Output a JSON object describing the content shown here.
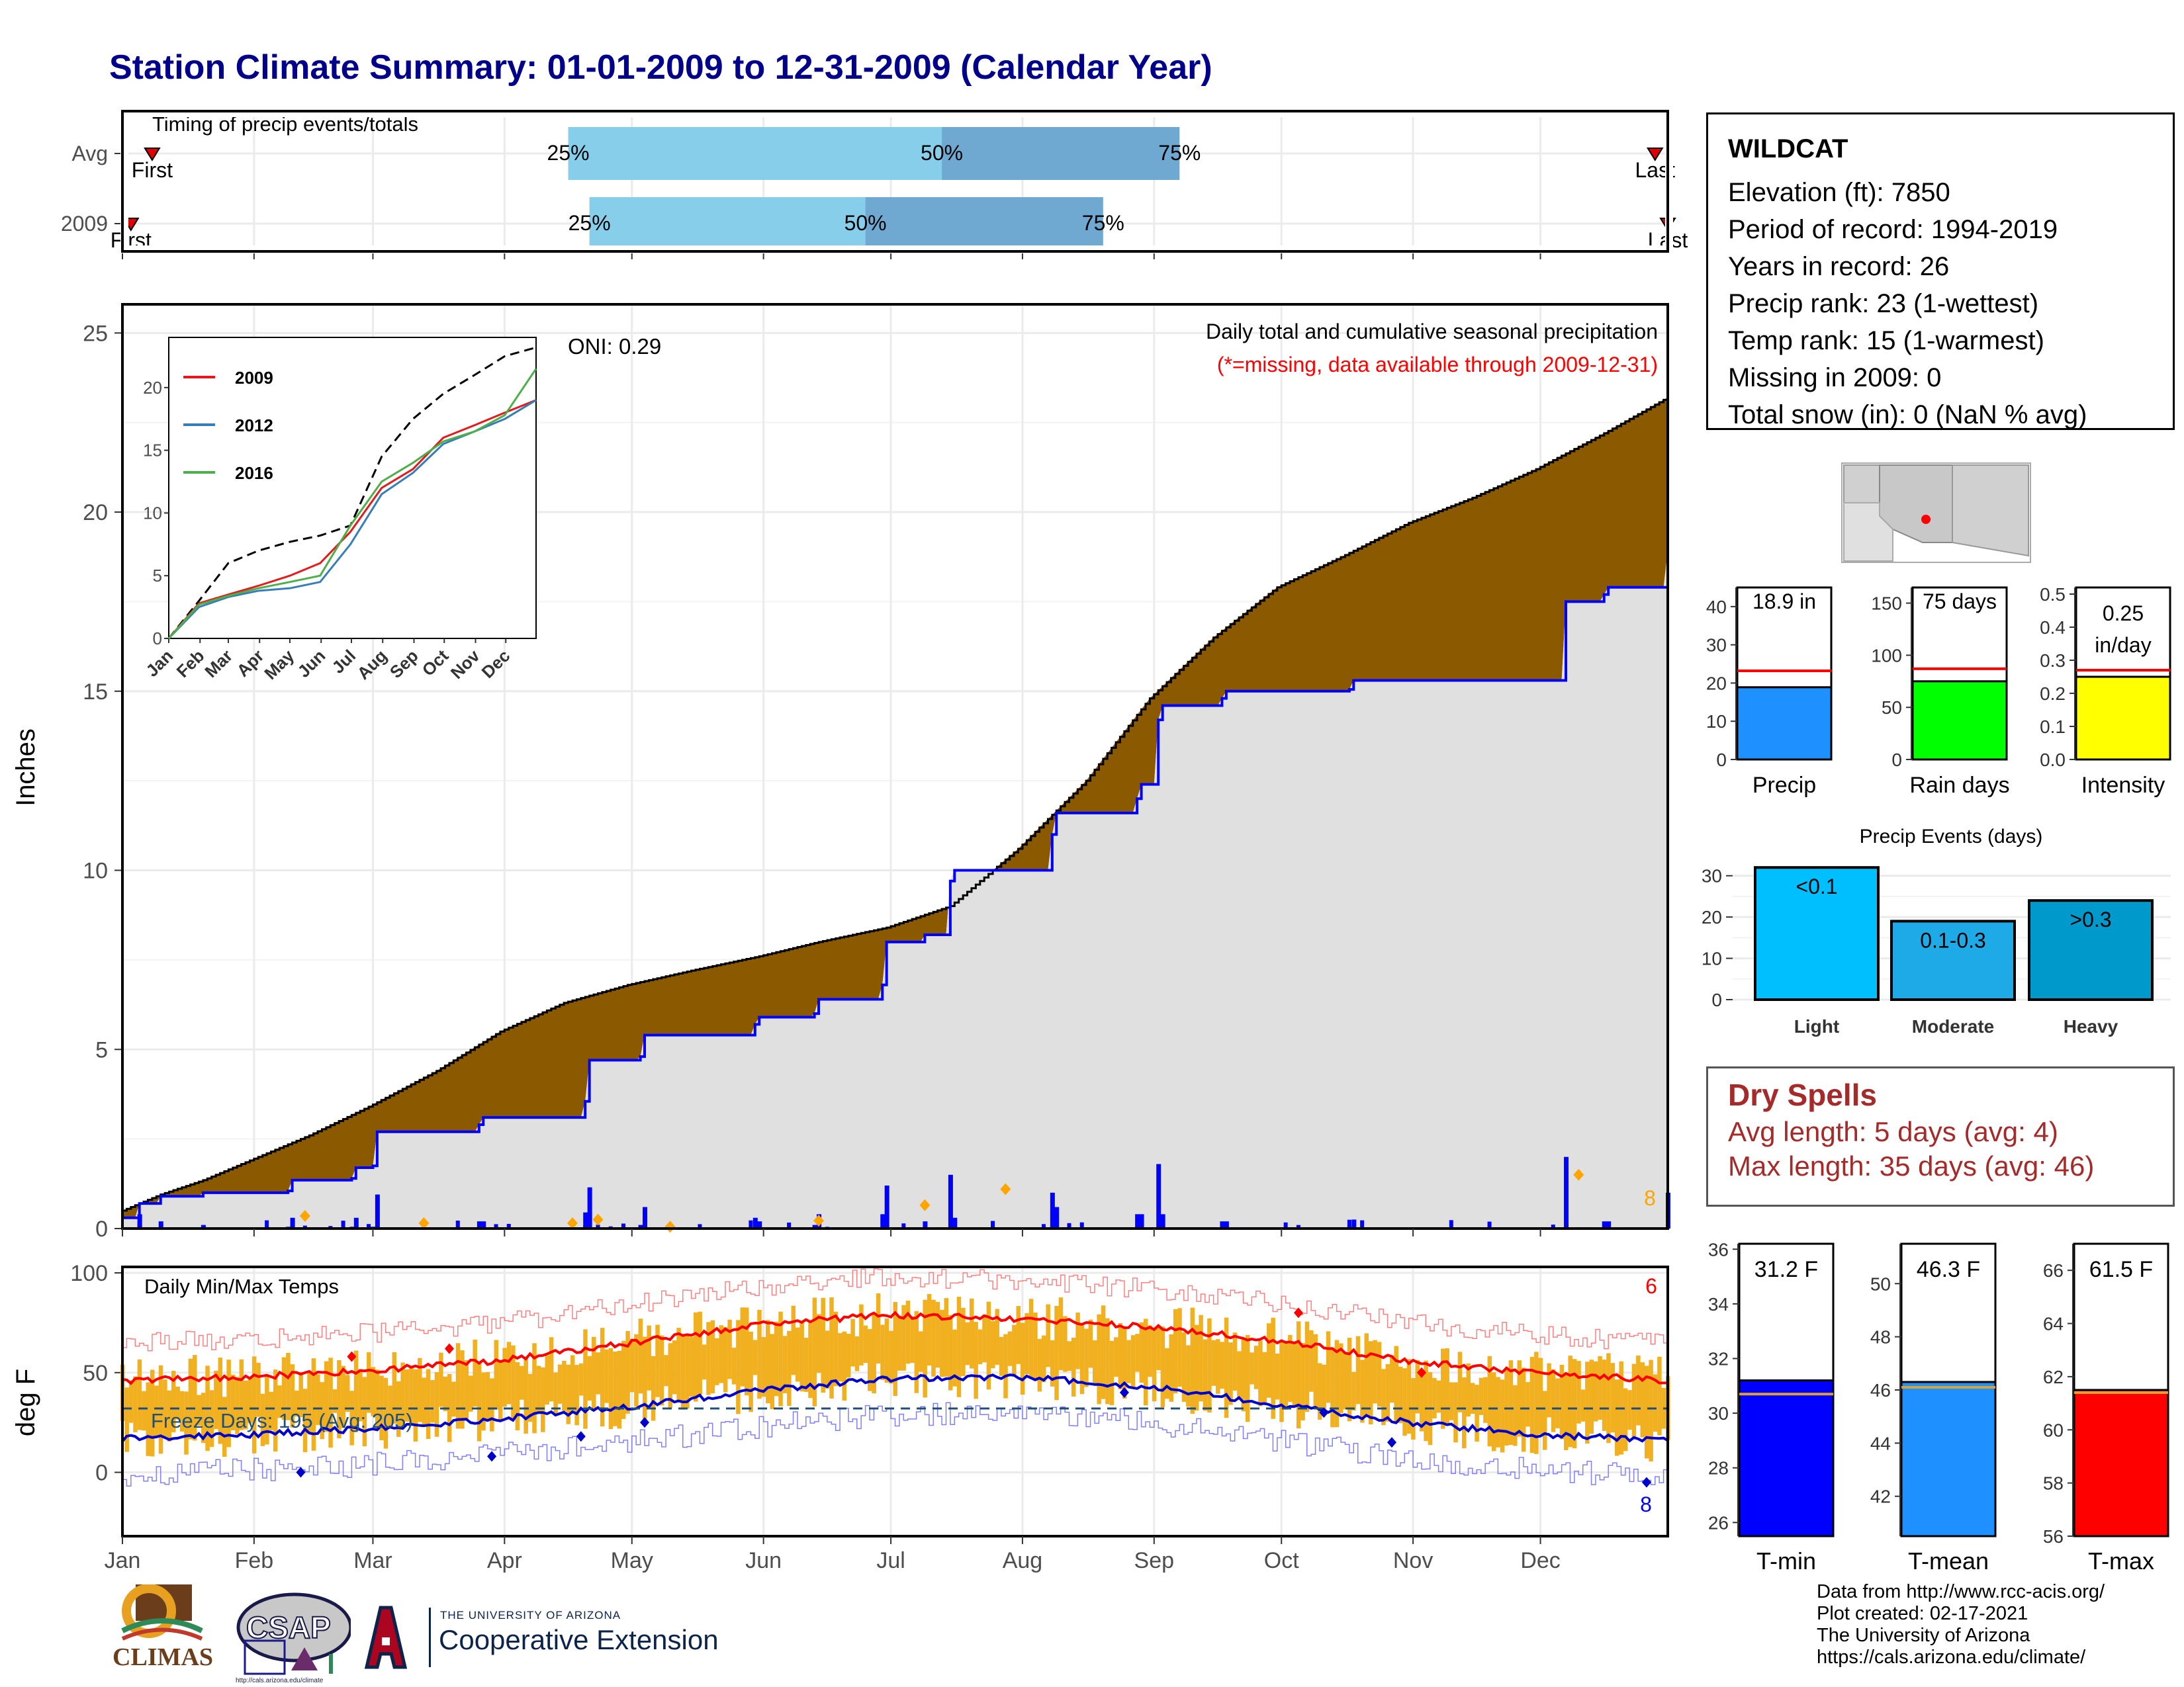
{
  "title": "Station Climate Summary: 01-01-2009 to 12-31-2009 (Calendar Year)",
  "colors": {
    "title": "#00008b",
    "brown": "#8b5a00",
    "lightgray": "#e0e0e0",
    "blue": "#0000ff",
    "red": "#ff0000",
    "orange": "#f0b020",
    "lightblue": "#87ceeb",
    "midblue": "#6fa8d0"
  },
  "timing": {
    "label": "Timing of precip events/totals",
    "rows": [
      {
        "name": "Avg",
        "first_label": "First",
        "last_label": "Last",
        "first_day": 8,
        "last_day": 362,
        "p25": 106,
        "p50": 194,
        "p75": 250,
        "p25_label": "25%",
        "p50_label": "50%",
        "p75_label": "75%"
      },
      {
        "name": "2009",
        "first_label": "First",
        "last_label": "Last",
        "first_day": 3,
        "last_day": 365,
        "p25": 111,
        "p50": 176,
        "p75": 232,
        "p25_label": "25%",
        "p50_label": "50%",
        "p75_label": "75%"
      }
    ]
  },
  "months": [
    "Jan",
    "Feb",
    "Mar",
    "Apr",
    "May",
    "Jun",
    "Jul",
    "Aug",
    "Sep",
    "Oct",
    "Nov",
    "Dec"
  ],
  "precip_panel": {
    "ylabel": "Inches",
    "yticks": [
      0,
      5,
      10,
      15,
      20,
      25
    ],
    "ylim": [
      0,
      25.8
    ],
    "annot_title": "Daily total and cumulative seasonal precipitation",
    "annot_missing": "(*=missing, data available through 2009-12-31)",
    "oni_label": "ONI: 0.29",
    "corner_count": "8"
  },
  "chart_data": [
    {
      "type": "area",
      "title": "Daily total and cumulative seasonal precipitation",
      "ylabel": "Inches",
      "ylim": [
        0,
        25.8
      ],
      "series": [
        {
          "name": "avg cumulative",
          "x": [
            1,
            10,
            20,
            31,
            45,
            59,
            75,
            90,
            105,
            120,
            135,
            151,
            165,
            181,
            196,
            212,
            228,
            243,
            258,
            273,
            289,
            304,
            319,
            334,
            350,
            365
          ],
          "values": [
            0.5,
            0.95,
            1.35,
            1.9,
            2.6,
            3.4,
            4.4,
            5.5,
            6.3,
            6.8,
            7.2,
            7.6,
            8.0,
            8.4,
            9.0,
            10.6,
            12.5,
            14.8,
            16.5,
            17.9,
            18.8,
            19.7,
            20.4,
            21.2,
            22.2,
            23.2
          ]
        },
        {
          "name": "2009 cumulative",
          "x": [
            1,
            5,
            10,
            20,
            40,
            41,
            55,
            56,
            60,
            61,
            85,
            86,
            110,
            111,
            123,
            124,
            150,
            151,
            164,
            165,
            180,
            181,
            190,
            196,
            197,
            220,
            221,
            240,
            241,
            245,
            246,
            260,
            261,
            290,
            291,
            340,
            341,
            350,
            351,
            365
          ],
          "values": [
            0.3,
            0.7,
            0.9,
            1.0,
            1.05,
            1.35,
            1.4,
            1.7,
            1.75,
            2.7,
            2.9,
            3.1,
            3.55,
            4.7,
            4.8,
            5.4,
            5.7,
            5.9,
            6.0,
            6.4,
            6.8,
            8.0,
            8.2,
            9.7,
            10.0,
            11.0,
            11.6,
            12.0,
            12.4,
            14.2,
            14.6,
            14.8,
            15.0,
            15.05,
            15.3,
            15.3,
            17.5,
            17.7,
            17.9,
            18.9
          ]
        }
      ]
    },
    {
      "type": "line",
      "title": "",
      "categories": [
        "Jan",
        "Feb",
        "Mar",
        "Apr",
        "May",
        "Jun",
        "Jul",
        "Aug",
        "Sep",
        "Oct",
        "Nov",
        "Dec"
      ],
      "ylim": [
        0,
        22
      ],
      "yticks": [
        0,
        5,
        10,
        15,
        20
      ],
      "series": [
        {
          "name": "avg",
          "dashed": true,
          "x": [
            1,
            31,
            60,
            90,
            121,
            151,
            181,
            212,
            243,
            273,
            304,
            334,
            365
          ],
          "values": [
            0,
            3,
            6,
            7,
            7.7,
            8.2,
            9,
            14.5,
            17.5,
            19.5,
            21,
            22.5,
            23.2
          ]
        },
        {
          "name": "2009",
          "values": [
            0,
            2.8,
            3.5,
            4.2,
            5.0,
            6.0,
            8.5,
            12.0,
            13.5,
            16.0,
            17.0,
            18.0,
            19.0
          ],
          "x": [
            1,
            31,
            60,
            90,
            121,
            151,
            181,
            212,
            243,
            273,
            304,
            334,
            365
          ]
        },
        {
          "name": "2012",
          "values": [
            0,
            2.5,
            3.3,
            3.8,
            4.0,
            4.5,
            7.5,
            11.5,
            13.2,
            15.5,
            16.5,
            17.5,
            19.0
          ],
          "x": [
            1,
            31,
            60,
            90,
            121,
            151,
            181,
            212,
            243,
            273,
            304,
            334,
            365
          ]
        },
        {
          "name": "2016",
          "values": [
            0,
            2.7,
            3.4,
            4.0,
            4.5,
            5.0,
            9.0,
            12.5,
            14.0,
            15.7,
            16.5,
            17.8,
            21.5
          ],
          "x": [
            1,
            31,
            60,
            90,
            121,
            151,
            181,
            212,
            243,
            273,
            304,
            334,
            365
          ]
        }
      ]
    },
    {
      "type": "bar",
      "title": "",
      "categories": [
        "Precip",
        "Rain days",
        "Intensity"
      ],
      "series": [
        {
          "name": "2009",
          "values": [
            18.9,
            75,
            0.25
          ]
        },
        {
          "name": "avg",
          "values": [
            23.2,
            87,
            0.27
          ]
        }
      ],
      "labels": [
        "18.9 in",
        "75 days",
        "0.25 in/day"
      ],
      "ylims": [
        [
          0,
          45
        ],
        [
          0,
          165
        ],
        [
          0,
          0.52
        ]
      ]
    },
    {
      "type": "bar",
      "title": "Precip Events (days)",
      "categories": [
        "Light",
        "Moderate",
        "Heavy"
      ],
      "series": [
        {
          "name": "2009",
          "values": [
            32,
            19,
            24
          ]
        }
      ],
      "labels": [
        "<0.1",
        "0.1-0.3",
        ">0.3"
      ],
      "ylim": [
        0,
        33
      ]
    },
    {
      "type": "line",
      "title": "Daily Min/Max Temps",
      "ylabel": "deg F",
      "ylim": [
        -32,
        103
      ],
      "yticks": [
        0,
        50,
        100
      ],
      "series": [
        {
          "name": "avg max",
          "x": [
            1,
            31,
            60,
            90,
            121,
            151,
            181,
            212,
            243,
            273,
            304,
            334,
            365
          ],
          "values": [
            46,
            48,
            51,
            56,
            65,
            74,
            79,
            77,
            73,
            66,
            56,
            50,
            46
          ]
        },
        {
          "name": "avg min",
          "x": [
            1,
            31,
            60,
            90,
            121,
            151,
            181,
            212,
            243,
            273,
            304,
            334,
            365
          ],
          "values": [
            17,
            19,
            22,
            27,
            33,
            41,
            47,
            48,
            43,
            34,
            25,
            19,
            16
          ]
        }
      ],
      "freeze_line": 32
    },
    {
      "type": "bar",
      "title": "",
      "categories": [
        "T-min",
        "T-mean",
        "T-max"
      ],
      "series": [
        {
          "name": "2009",
          "values": [
            31.2,
            46.3,
            61.5
          ]
        },
        {
          "name": "avg",
          "values": [
            30.7,
            46.1,
            61.4
          ]
        }
      ],
      "labels": [
        "31.2 F",
        "46.3 F",
        "61.5 F"
      ],
      "ylims": [
        [
          25.5,
          36.2
        ],
        [
          40.5,
          51.5
        ],
        [
          56,
          67
        ]
      ]
    }
  ],
  "inset": {
    "yticks": [
      0,
      5,
      10,
      15,
      20
    ],
    "legend": [
      {
        "name": "2009",
        "color": "#e41a1c"
      },
      {
        "name": "2012",
        "color": "#377eb8"
      },
      {
        "name": "2016",
        "color": "#4daf4a"
      }
    ]
  },
  "temp_panel": {
    "label": "Daily Min/Max Temps",
    "ylabel": "deg F",
    "yticks": [
      0,
      50,
      100
    ],
    "freeze_label": "Freeze Days: 195 (Avg: 205)",
    "max_record_count": "6",
    "min_record_count": "8"
  },
  "station": {
    "name": "WILDCAT",
    "lines": [
      "Elevation (ft): 7850",
      "Period of record: 1994-2019",
      "Years in record: 26",
      "Precip rank: 23 (1-wettest)",
      "Temp rank: 15 (1-warmest)",
      "Missing in 2009: 0",
      "Total snow (in): 0 (NaN % avg)"
    ]
  },
  "summary_bars": {
    "precip": {
      "label": "Precip",
      "value_label": "18.9 in",
      "yticks": [
        0,
        10,
        20,
        30,
        40
      ],
      "color": "#1e90ff"
    },
    "raindays": {
      "label": "Rain days",
      "value_label": "75 days",
      "yticks": [
        0,
        50,
        100,
        150
      ],
      "color": "#00ff00"
    },
    "intensity": {
      "label": "Intensity",
      "value_label": "0.25",
      "value_label2": "in/day",
      "yticks": [
        "0.0",
        "0.1",
        "0.2",
        "0.3",
        "0.4",
        "0.5"
      ],
      "color": "#ffff00"
    }
  },
  "events": {
    "title": "Precip Events (days)",
    "yticks": [
      0,
      10,
      20,
      30
    ],
    "bars": [
      {
        "label": "Light",
        "inner": "<0.1",
        "color": "#00bfff"
      },
      {
        "label": "Moderate",
        "inner": "0.1-0.3",
        "color": "#1eaae6"
      },
      {
        "label": "Heavy",
        "inner": ">0.3",
        "color": "#0099cc"
      }
    ]
  },
  "dry_spells": {
    "title": "Dry Spells",
    "avg": "Avg length: 5 days (avg: 4)",
    "max": "Max length: 35 days (avg: 46)"
  },
  "temp_bars": {
    "tmin": {
      "label": "T-min",
      "value_label": "31.2 F",
      "yticks": [
        26,
        28,
        30,
        32,
        34,
        36
      ],
      "color": "#0000ff"
    },
    "tmean": {
      "label": "T-mean",
      "value_label": "46.3 F",
      "yticks": [
        42,
        44,
        46,
        48,
        50
      ],
      "color": "#1e90ff"
    },
    "tmax": {
      "label": "T-max",
      "value_label": "61.5 F",
      "yticks": [
        56,
        58,
        60,
        62,
        64,
        66
      ],
      "color": "#ff0000"
    }
  },
  "logos": {
    "climas": "CLIMAS",
    "csap": "CSAP",
    "csap_url": "http://cals.arizona.edu/climate",
    "ua_small": "THE UNIVERSITY OF ARIZONA",
    "ua_big": "Cooperative Extension"
  },
  "credits": [
    "Data from http://www.rcc-acis.org/",
    "Plot created: 02-17-2021",
    "The University of Arizona",
    "https://cals.arizona.edu/climate/"
  ]
}
